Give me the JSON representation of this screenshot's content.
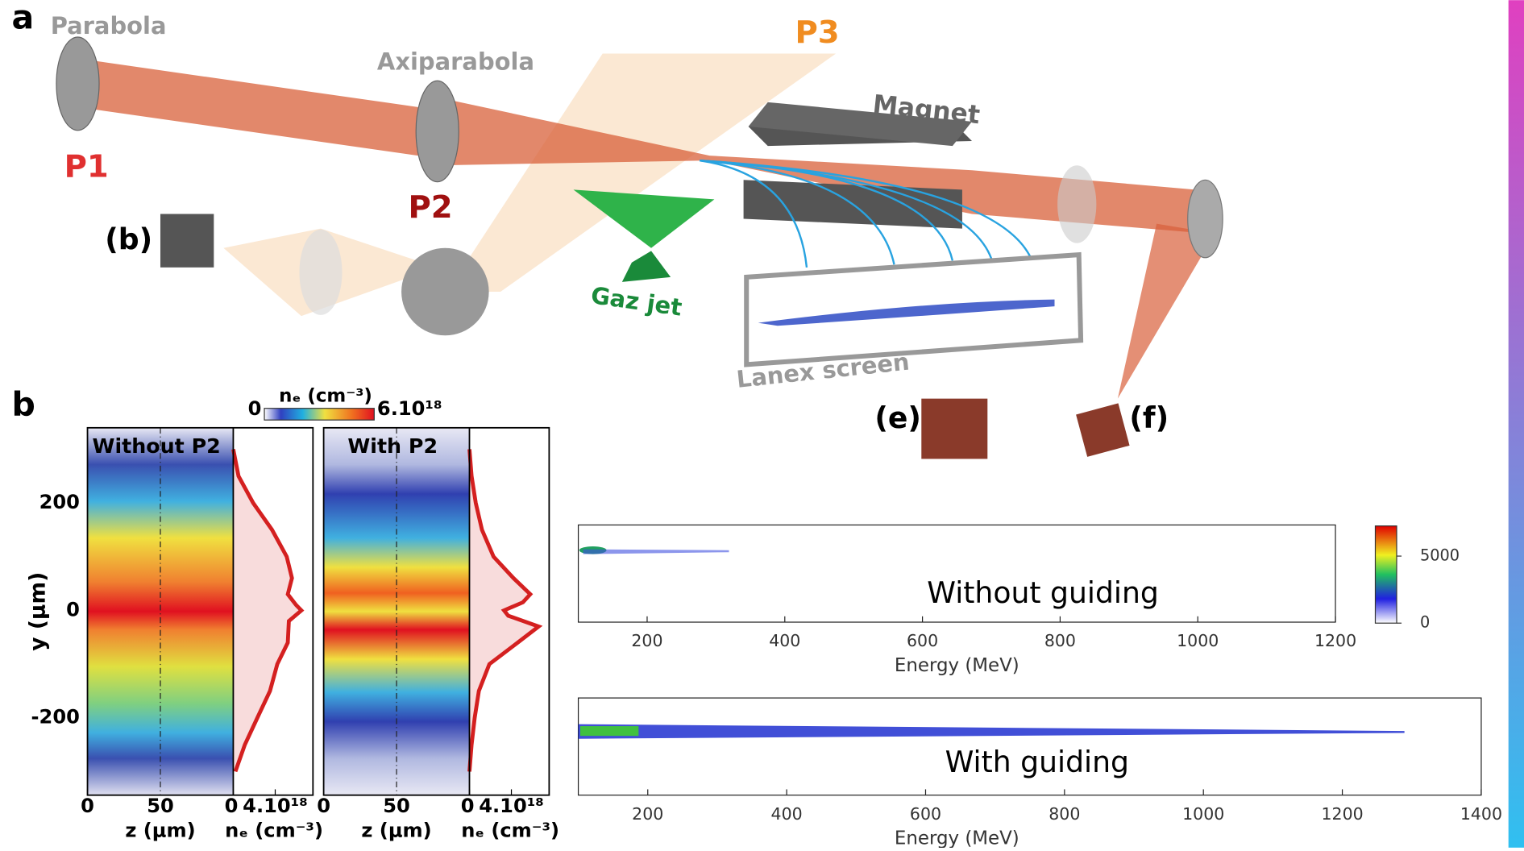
{
  "panel_labels": [
    "a",
    "b"
  ],
  "setup": {
    "parabola": "Parabola",
    "axiparabola": "Axiparabola",
    "p1": "P1",
    "p2": "P2",
    "p3": "P3",
    "magnet": "Magnet",
    "gas_jet": "Gaz jet",
    "lanex": "Lanex screen",
    "cam_b": "(b)",
    "cam_e": "(e)",
    "cam_f": "(f)"
  },
  "density_maps": {
    "colorbar": {
      "min": "0",
      "label": "nₑ (cm⁻³)",
      "max": "6.10¹⁸"
    },
    "ylabel": "y (μm)",
    "ylim": [
      -344,
      340
    ],
    "yticks": [
      -200,
      0,
      200
    ],
    "zlim": [
      0,
      100
    ],
    "ne_lim": [
      0,
      7.6e+18
    ],
    "panels": [
      {
        "title": "Without P2",
        "zticks": [
          0,
          50
        ],
        "xlabel": "z (μm)",
        "profile_ticks": [
          0,
          {
            "value": 4e+18,
            "label": "4.10¹⁸"
          }
        ],
        "profile_xlabel": "nₑ (cm⁻³)",
        "y": [
          300,
          250,
          200,
          150,
          100,
          60,
          30,
          10,
          0,
          -20,
          -60,
          -100,
          -150,
          -200,
          -250,
          -300
        ],
        "ne": [
          0,
          5e+17,
          1.9e+18,
          3.7e+18,
          5.1e+18,
          5.6e+18,
          5.2e+18,
          6e+18,
          6.5e+18,
          5.3e+18,
          5.2e+18,
          4.2e+18,
          3.5e+18,
          2.3e+18,
          1.1e+18,
          2e+17
        ]
      },
      {
        "title": "With P2",
        "zticks": [
          0,
          50
        ],
        "xlabel": "z (μm)",
        "profile_ticks": [
          0,
          {
            "value": 4e+18,
            "label": "4.10¹⁸"
          }
        ],
        "profile_xlabel": "nₑ (cm⁻³)",
        "y": [
          300,
          250,
          200,
          150,
          100,
          60,
          30,
          15,
          0,
          -10,
          -30,
          -60,
          -100,
          -150,
          -200,
          -250,
          -300
        ],
        "ne": [
          0,
          2e+17,
          6e+17,
          1.2e+18,
          2.3e+18,
          4.2e+18,
          5.8e+18,
          5.1e+18,
          3.3e+18,
          3.7e+18,
          6.6e+18,
          4.6e+18,
          1.9e+18,
          9e+17,
          5e+17,
          2e+17,
          0
        ]
      }
    ]
  },
  "spectra": {
    "xlabel": "Energy (MeV)",
    "colorbar": {
      "clim": [
        0,
        7250
      ],
      "ticks": [
        0,
        5000
      ]
    },
    "panels": [
      {
        "label": "Without guiding",
        "xlim": [
          100,
          1200
        ],
        "xticks": [
          200,
          400,
          600,
          800,
          1000,
          1200
        ]
      },
      {
        "label": "With guiding",
        "xlim": [
          100,
          1400
        ],
        "xticks": [
          200,
          400,
          600,
          800,
          1000,
          1200,
          1400
        ]
      }
    ]
  }
}
